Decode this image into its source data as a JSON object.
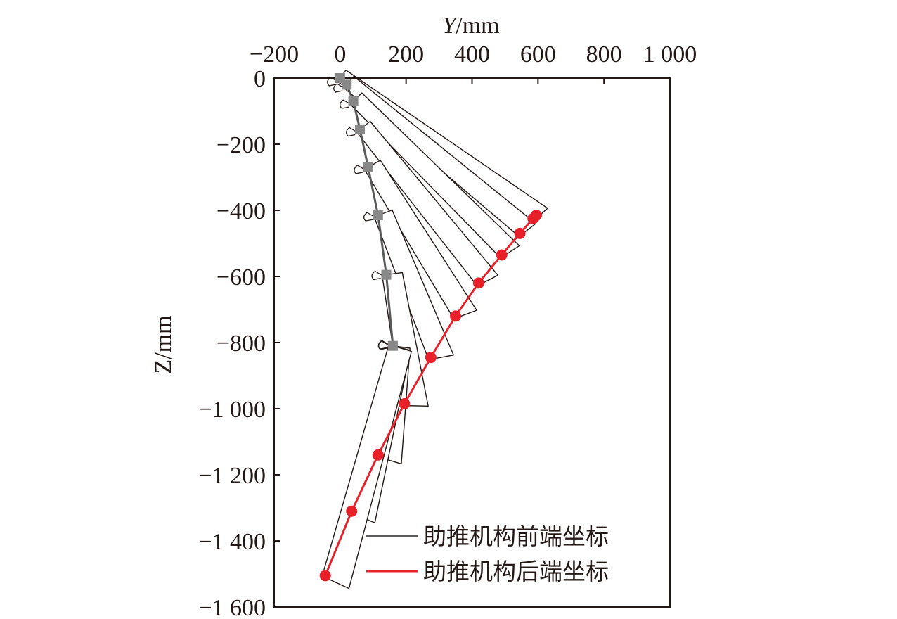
{
  "chart_data": {
    "type": "line",
    "xlabel_italic": "Y",
    "xlabel_unit": "/mm",
    "ylabel": "Z/mm",
    "xlim": [
      -200,
      1000
    ],
    "ylim": [
      -1600,
      0
    ],
    "x_ticks": [
      -200,
      0,
      200,
      400,
      600,
      800,
      1000
    ],
    "y_ticks": [
      0,
      -200,
      -400,
      -600,
      -800,
      -1000,
      -1200,
      -1400,
      -1600
    ],
    "x_tick_labels": [
      "−200",
      "0",
      "200",
      "400",
      "600",
      "800",
      "1 000"
    ],
    "y_tick_labels": [
      "0",
      "−200",
      "−400",
      "−600",
      "−800",
      "−1 000",
      "−1 200",
      "−1 400",
      "−1 600"
    ],
    "legend_position": "lower-right",
    "series": [
      {
        "name": "助推机构前端坐标",
        "color": "#5a5a5a",
        "marker": "square",
        "x": [
          0,
          20,
          40,
          60,
          85,
          115,
          140,
          160
        ],
        "y": [
          0,
          -20,
          -70,
          -155,
          -270,
          -415,
          -595,
          -810
        ]
      },
      {
        "name": "助推机构后端坐标",
        "color": "#e8202a",
        "marker": "circle",
        "x": [
          595,
          585,
          545,
          490,
          420,
          350,
          275,
          195,
          115,
          35,
          -45
        ],
        "y": [
          -415,
          -425,
          -470,
          -535,
          -620,
          -720,
          -845,
          -985,
          -1140,
          -1310,
          -1505
        ]
      }
    ]
  }
}
